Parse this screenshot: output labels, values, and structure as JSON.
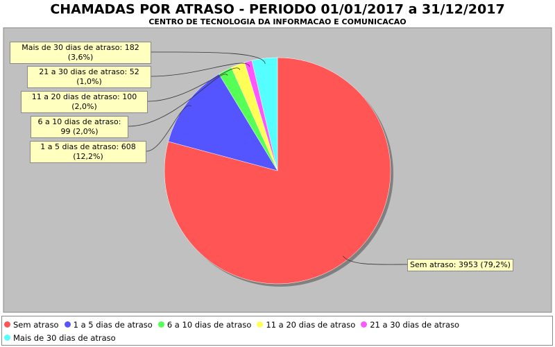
{
  "chart_data": {
    "type": "pie",
    "title": "CHAMADAS POR ATRASO - PERIODO 01/01/2017 a 31/12/2017",
    "subtitle": "CENTRO DE TECNOLOGIA DA INFORMACAO E COMUNICACAO",
    "categories": [
      "Sem atraso",
      "1 a 5 dias de atraso",
      "6 a 10 dias de atraso",
      "11 a 20 dias de atraso",
      "21 a 30 dias de atraso",
      "Mais de 30 dias de atraso"
    ],
    "values": [
      3953,
      608,
      99,
      100,
      52,
      182
    ],
    "value_labels": [
      "Sem atraso: 3953 (79,2%)",
      "1 a 5 dias de atraso: 608 (12,2%)",
      "6 a 10 dias de atraso: 99 (2,0%)",
      "11 a 20 dias de atraso: 100 (2,0%)",
      "21 a 30 dias de atraso: 52 (1,0%)",
      "Mais de 30 dias de atraso: 182 (3,6%)"
    ],
    "colors": [
      "#ff5555",
      "#5555ff",
      "#55ff55",
      "#ffff55",
      "#ff55ff",
      "#55ffff"
    ]
  }
}
